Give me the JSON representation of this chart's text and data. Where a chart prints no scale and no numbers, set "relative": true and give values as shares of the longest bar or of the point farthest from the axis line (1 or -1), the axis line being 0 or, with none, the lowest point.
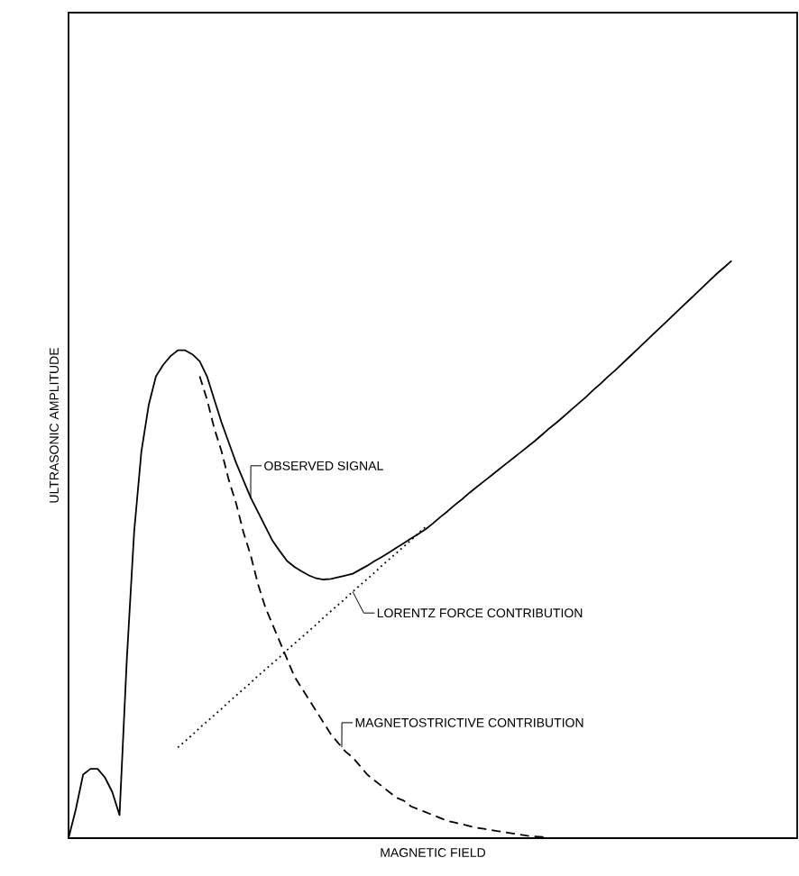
{
  "chart_data": {
    "type": "line",
    "relative": true,
    "xlabel": "MAGNETIC FIELD",
    "ylabel": "ULTRASONIC AMPLITUDE",
    "legend": false,
    "categories": [
      null,
      null,
      null,
      null,
      null,
      null,
      null,
      null,
      null,
      null,
      null,
      null,
      null,
      null,
      null,
      null,
      null,
      null,
      null,
      null,
      null,
      null,
      null,
      null,
      null,
      null,
      null,
      null,
      null,
      null,
      null,
      null,
      null,
      null,
      null,
      null,
      null,
      null,
      null,
      null,
      null,
      null,
      null,
      null,
      null,
      null,
      null,
      null,
      null,
      null,
      null,
      null,
      null,
      null,
      null,
      null,
      null,
      null,
      null,
      null,
      null,
      null,
      null,
      null,
      null,
      null,
      null,
      null,
      null,
      null,
      null,
      null,
      null,
      null,
      null,
      null,
      null,
      null,
      null,
      null,
      null,
      null,
      null,
      null,
      null,
      null,
      null,
      null,
      null,
      null,
      null,
      null,
      null,
      null,
      null,
      null,
      null,
      null,
      null,
      null,
      null
    ],
    "series": [
      {
        "name": "OBSERVED SIGNAL",
        "color": "#000000",
        "line_style": "solid",
        "values": [
          0,
          0.05,
          0.11,
          0.12,
          0.12,
          0.105,
          0.08,
          0.04,
          0.31,
          0.53,
          0.67,
          0.75,
          0.8,
          0.82,
          0.835,
          0.845,
          0.845,
          0.838,
          0.826,
          0.8,
          0.76,
          0.72,
          0.685,
          0.65,
          0.62,
          0.59,
          0.565,
          0.54,
          0.515,
          0.497,
          0.48,
          0.47,
          0.462,
          0.455,
          0.45,
          0.448,
          0.449,
          0.452,
          0.455,
          0.458,
          0.465,
          0.472,
          0.48,
          0.487,
          0.495,
          0.503,
          0.511,
          0.519,
          0.527,
          0.535,
          0.545,
          0.556,
          0.566,
          0.577,
          0.587,
          0.598,
          0.608,
          0.618,
          0.628,
          0.638,
          0.648,
          0.658,
          0.668,
          0.678,
          0.688,
          0.699,
          0.71,
          0.72,
          0.731,
          0.742,
          0.753,
          0.764,
          0.776,
          0.787,
          0.799,
          0.81,
          0.822,
          0.834,
          0.846,
          0.858,
          0.87,
          0.882,
          0.894,
          0.906,
          0.918,
          0.93,
          0.942,
          0.954,
          0.966,
          0.978,
          0.989,
          1,
          null,
          null,
          null,
          null,
          null,
          null,
          null,
          null,
          null
        ]
      },
      {
        "name": "LORENTZ FORCE CONTRIBUTION",
        "color": "#000000",
        "line_style": "dotted",
        "values": [
          null,
          null,
          null,
          null,
          null,
          null,
          null,
          null,
          null,
          null,
          null,
          null,
          null,
          null,
          null,
          0.157,
          0.168,
          0.179,
          0.191,
          0.202,
          0.213,
          0.224,
          0.236,
          0.247,
          0.258,
          0.269,
          0.281,
          0.292,
          0.303,
          0.314,
          0.326,
          0.337,
          0.348,
          0.359,
          0.37,
          0.382,
          0.393,
          0.404,
          0.415,
          0.427,
          0.438,
          0.449,
          0.46,
          0.472,
          0.483,
          0.494,
          0.505,
          0.516,
          0.528,
          0.539,
          null,
          null,
          null,
          null,
          null,
          null,
          null,
          null,
          null,
          null,
          null,
          null,
          null,
          null,
          null,
          null,
          null,
          null,
          null,
          null,
          null,
          null,
          null,
          null,
          null,
          null,
          null,
          null,
          null,
          null,
          null,
          null,
          null,
          null,
          null,
          null,
          null,
          null,
          null,
          null,
          null,
          null,
          null,
          null,
          null,
          null,
          null,
          null,
          null,
          null,
          null
        ]
      },
      {
        "name": "MAGNETOSTRICTIVE CONTRIBUTION",
        "color": "#000000",
        "line_style": "dashed",
        "values": [
          null,
          null,
          null,
          null,
          null,
          null,
          null,
          null,
          null,
          null,
          null,
          null,
          null,
          null,
          null,
          null,
          null,
          null,
          0.8,
          0.76,
          0.71,
          0.67,
          0.62,
          0.58,
          0.53,
          0.49,
          0.44,
          0.4,
          0.37,
          0.34,
          0.31,
          0.28,
          0.26,
          0.24,
          0.22,
          0.2,
          0.18,
          0.165,
          0.15,
          0.14,
          0.125,
          0.11,
          0.1,
          0.09,
          0.08,
          0.07,
          0.065,
          0.055,
          0.05,
          0.045,
          0.04,
          0.035,
          0.03,
          0.027,
          0.024,
          0.021,
          0.018,
          0.016,
          0.014,
          0.012,
          0.01,
          0.008,
          0.006,
          0.004,
          0.003,
          0.002,
          0,
          null,
          null,
          null,
          null,
          null,
          null,
          null,
          null,
          null,
          null,
          null,
          null,
          null,
          null,
          null,
          null,
          null,
          null,
          null,
          null,
          null,
          null,
          null,
          null,
          null,
          null,
          null,
          null,
          null,
          null,
          null,
          null,
          null,
          null
        ]
      }
    ]
  }
}
